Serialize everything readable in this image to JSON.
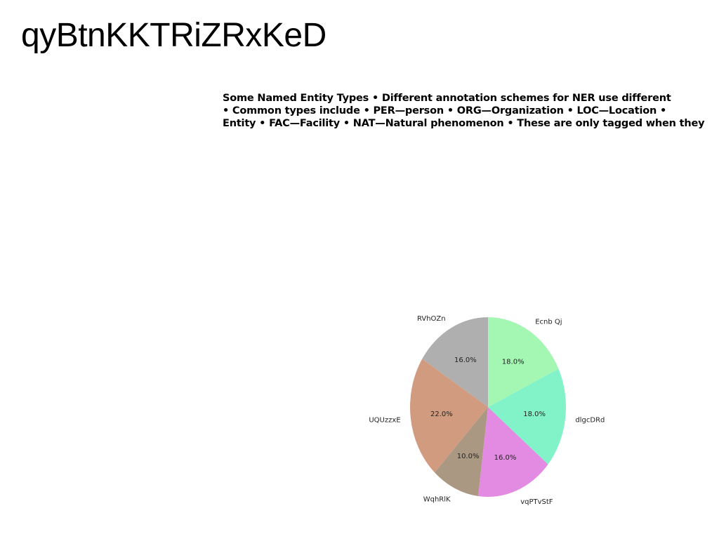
{
  "page": {
    "title": "qyBtnKKTRiZRxKeD",
    "bullet_lines": [
      "Some Named Entity Types • Different annotation schemes for NER use different",
      "• Common types include • PER—person • ORG—Organization • LOC—Location •",
      "Entity • FAC—Facility • NAT—Natural phenomenon • These are only tagged when they"
    ]
  },
  "chart_data": {
    "type": "pie",
    "title": "",
    "start_angle_deg": 90,
    "direction": "counterclockwise",
    "slices": [
      {
        "label": "RVhOZn",
        "value": 16.0,
        "pct_label": "16.0%",
        "color": "#b0afb0"
      },
      {
        "label": "UQUzzxE",
        "value": 22.0,
        "pct_label": "22.0%",
        "color": "#d19b80"
      },
      {
        "label": "WqhRlK",
        "value": 10.0,
        "pct_label": "10.0%",
        "color": "#ab9882"
      },
      {
        "label": "vqPTvStF",
        "value": 16.0,
        "pct_label": "16.0%",
        "color": "#e38ae2"
      },
      {
        "label": "dlgcDRd",
        "value": 18.0,
        "pct_label": "18.0%",
        "color": "#82f3c8"
      },
      {
        "label": "Ecnb Qj",
        "value": 18.0,
        "pct_label": "18.0%",
        "color": "#a3f7b2"
      }
    ]
  }
}
